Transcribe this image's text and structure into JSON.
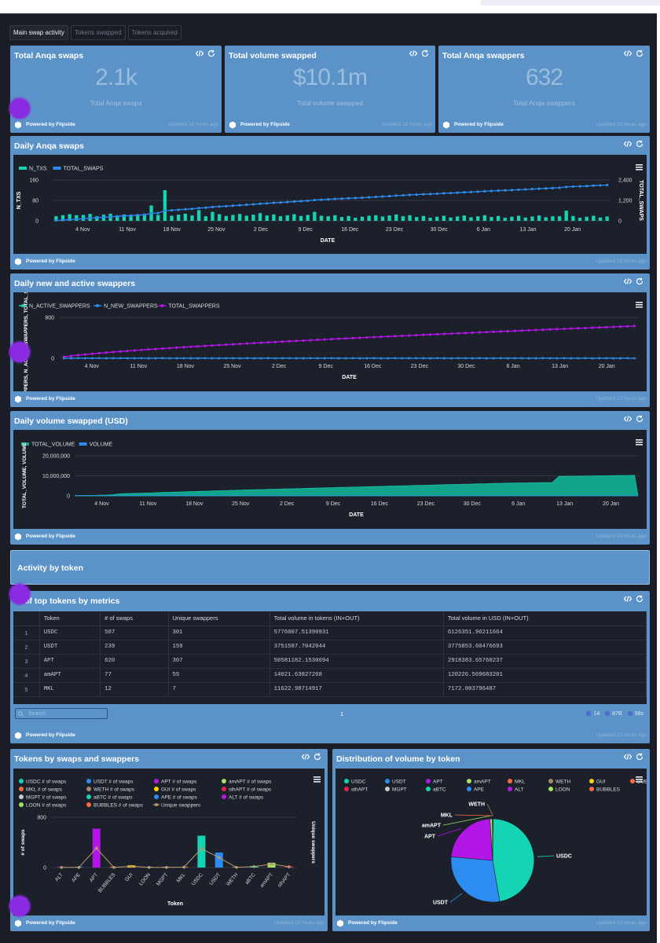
{
  "tabs": [
    {
      "label": "Main swap activity",
      "active": true
    },
    {
      "label": "Tokens swapped",
      "active": false
    },
    {
      "label": "Tokens acquired",
      "active": false
    }
  ],
  "footer_brand": "Powered by Flipside",
  "kpis": [
    {
      "title": "Total Anqa swaps",
      "value": "2.1k",
      "subtitle": "Total Anqa swaps",
      "updated": "Updated 18 hours ago"
    },
    {
      "title": "Total volume swapped",
      "value": "$10.1m",
      "subtitle": "Total volume swapped",
      "updated": "Updated 18 hours ago"
    },
    {
      "title": "Total Anqa swappers",
      "value": "632",
      "subtitle": "Total Anqa swappers",
      "updated": "Updated 22 hours ago"
    }
  ],
  "daily_swaps": {
    "title": "Daily Anqa swaps",
    "updated": "Updated 18 hours ago",
    "chart_data": {
      "type": "bar+line",
      "legend": [
        "N_TXS",
        "TOTAL_SWAPS"
      ],
      "xlabel": "DATE",
      "ylabel": "N_TXS",
      "y2label": "TOTAL_SWAPS",
      "yticks": [
        "0",
        "80",
        "160"
      ],
      "y2ticks": [
        "0",
        "1,200",
        "2,400"
      ],
      "ylim": [
        0,
        160
      ],
      "y2lim": [
        0,
        2400
      ],
      "xticks": [
        "4 Nov",
        "11 Nov",
        "18 Nov",
        "25 Nov",
        "2 Dec",
        "9 Dec",
        "16 Dec",
        "23 Dec",
        "30 Dec",
        "6 Jan",
        "13 Jan",
        "20 Jan"
      ],
      "colors": {
        "N_TXS": "#14d4b4",
        "TOTAL_SWAPS": "#2d8cf0"
      }
    }
  },
  "daily_swappers": {
    "title": "Daily new and active swappers",
    "updated": "Updated 22 hours ago",
    "chart_data": {
      "type": "line",
      "legend": [
        "N_ACTIVE_SWAPPERS",
        "N_NEW_SWAPPERS",
        "TOTAL_SWAPPERS"
      ],
      "xlabel": "DATE",
      "ylabel": "N_SWAPPERS, N_ACTIVE_SWAPPERS, TOTAL_SWAPPERS",
      "yticks": [
        "0",
        "800"
      ],
      "ylim": [
        0,
        800
      ],
      "xticks": [
        "4 Nov",
        "11 Nov",
        "18 Nov",
        "25 Nov",
        "2 Dec",
        "9 Dec",
        "16 Dec",
        "23 Dec",
        "30 Dec",
        "6 Jan",
        "13 Jan",
        "20 Jan"
      ],
      "colors": {
        "N_ACTIVE_SWAPPERS": "#14d4b4",
        "N_NEW_SWAPPERS": "#2d8cf0",
        "TOTAL_SWAPPERS": "#b317e8"
      }
    }
  },
  "daily_volume": {
    "title": "Daily volume swapped (USD)",
    "updated": "Updated 18 hours ago",
    "chart_data": {
      "type": "area",
      "legend": [
        "TOTAL_VOLUME",
        "VOLUME"
      ],
      "xlabel": "DATE",
      "ylabel": "TOTAL_VOLUME, VOLUME",
      "yticks": [
        "0",
        "10,000,000",
        "20,000,000"
      ],
      "ylim": [
        0,
        20000000
      ],
      "xticks": [
        "4 Nov",
        "11 Nov",
        "18 Nov",
        "25 Nov",
        "2 Dec",
        "9 Dec",
        "16 Dec",
        "23 Dec",
        "30 Dec",
        "6 Jan",
        "13 Jan",
        "20 Jan"
      ],
      "colors": {
        "TOTAL_VOLUME": "#12a38c",
        "VOLUME": "#2d8cf0"
      }
    }
  },
  "section": {
    "title": "Activity by token"
  },
  "top_tokens": {
    "title": "of top tokens by metrics",
    "updated": "Updated 22 hours ago",
    "columns": [
      "",
      "Token",
      "# of swaps",
      "Unique swappers",
      "Total volume in tokens (IN+OUT)",
      "Total volume in USD (IN+OUT)"
    ],
    "rows": [
      [
        "1",
        "USDC",
        "507",
        "301",
        "5776007.51390931",
        "6126351.96211664"
      ],
      [
        "2",
        "USDT",
        "239",
        "159",
        "3751587.7042044",
        "3775853.60476693"
      ],
      [
        "3",
        "APT",
        "620",
        "307",
        "50581182.1530694",
        "2918383.65760237"
      ],
      [
        "4",
        "amAPT",
        "77",
        "55",
        "14021.63827268",
        "120226.569683201"
      ],
      [
        "5",
        "MKL",
        "12",
        "7",
        "11622.98714917",
        "7172.003796487"
      ]
    ],
    "search_placeholder": "Search",
    "page": "1",
    "stats": [
      "14",
      "87B",
      "98s"
    ]
  },
  "tokens_chart": {
    "title": "Tokens by swaps and swappers",
    "updated": "Updated 22 hours ago",
    "legend": [
      {
        "name": "USDC # of swaps",
        "color": "#14d4b4"
      },
      {
        "name": "USDT # of swaps",
        "color": "#2d8cf0"
      },
      {
        "name": "APT # of swaps",
        "color": "#b317e8"
      },
      {
        "name": "amAPT # of swaps",
        "color": "#a3e061"
      },
      {
        "name": "MKL # of swaps",
        "color": "#ff6a3d"
      },
      {
        "name": "WETH # of swaps",
        "color": "#a88a6a"
      },
      {
        "name": "GUI # of swaps",
        "color": "#ffd400"
      },
      {
        "name": "sthAPT # of swaps",
        "color": "#e0244f"
      },
      {
        "name": "MGPT # of swaps",
        "color": "#c9c9c9"
      },
      {
        "name": "aBTC # of swaps",
        "color": "#14d4b4"
      },
      {
        "name": "APE # of swaps",
        "color": "#2d8cf0"
      },
      {
        "name": "ALT # of swaps",
        "color": "#b317e8"
      },
      {
        "name": "LOON # of swaps",
        "color": "#a3e061"
      },
      {
        "name": "BUBBLES # of swaps",
        "color": "#ff6a3d"
      },
      {
        "name": "Unique swappers",
        "color": "#b89a70"
      }
    ],
    "chart_data": {
      "type": "bar+line",
      "categories": [
        "ALT",
        "APE",
        "APT",
        "BUBBLES",
        "GUI",
        "LOON",
        "MGPT",
        "MKL",
        "USDC",
        "USDT",
        "WETH",
        "aBTC",
        "amAPT",
        "sthAPT"
      ],
      "swaps": [
        2,
        2,
        620,
        2,
        35,
        2,
        2,
        12,
        507,
        239,
        3,
        25,
        77,
        20
      ],
      "unique_swappers": [
        2,
        2,
        307,
        2,
        20,
        2,
        2,
        7,
        301,
        159,
        3,
        15,
        55,
        12
      ],
      "xlabel": "Token",
      "ylabel": "# of swaps",
      "y2label": "Unique swappers",
      "yticks": [
        "0",
        "800"
      ],
      "ylim": [
        0,
        800
      ]
    }
  },
  "volume_pie": {
    "title": "Distribution of volume by token",
    "updated": "Updated 22 hours ago",
    "legend": [
      {
        "name": "USDC",
        "color": "#14d4b4"
      },
      {
        "name": "USDT",
        "color": "#2d8cf0"
      },
      {
        "name": "APT",
        "color": "#b317e8"
      },
      {
        "name": "amAPT",
        "color": "#a3e061"
      },
      {
        "name": "MKL",
        "color": "#ff6a3d"
      },
      {
        "name": "WETH",
        "color": "#a88a6a"
      },
      {
        "name": "GUI",
        "color": "#ffd400"
      },
      {
        "name": "BUBBLES",
        "color": "#ff6a3d"
      },
      {
        "name": "sthAPT",
        "color": "#e0244f"
      },
      {
        "name": "MGPT",
        "color": "#c9c9c9"
      },
      {
        "name": "aBTC",
        "color": "#14d4b4"
      },
      {
        "name": "APE",
        "color": "#2d8cf0"
      },
      {
        "name": "ALT",
        "color": "#b317e8"
      },
      {
        "name": "LOON",
        "color": "#a3e061"
      },
      {
        "name": "BUBBLES",
        "color": "#ff6a3d"
      }
    ],
    "chart_data": {
      "type": "pie",
      "slices": [
        {
          "label": "USDC",
          "value": 6126351.96,
          "color": "#14d4b4"
        },
        {
          "label": "USDT",
          "value": 3775853.6,
          "color": "#2d8cf0"
        },
        {
          "label": "APT",
          "value": 2918383.66,
          "color": "#b317e8"
        },
        {
          "label": "amAPT",
          "value": 120226.57,
          "color": "#a3e061"
        },
        {
          "label": "MKL",
          "value": 7172.0,
          "color": "#ff6a3d"
        },
        {
          "label": "WETH",
          "value": 5000,
          "color": "#a88a6a"
        }
      ]
    }
  }
}
